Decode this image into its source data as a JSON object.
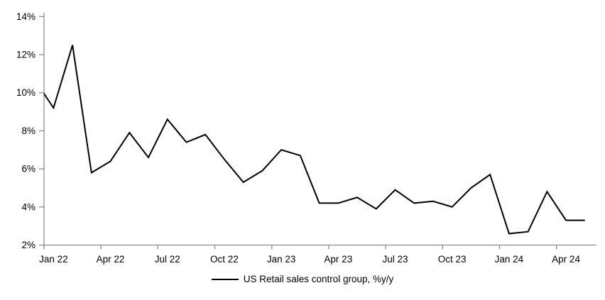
{
  "chart_data": {
    "type": "line",
    "title": "",
    "legend": "US Retail sales control group, %y/y",
    "legend_position": "bottom-center",
    "grid": false,
    "ylim": [
      2,
      14
    ],
    "y_tick_labels": [
      "2%",
      "4%",
      "6%",
      "8%",
      "10%",
      "12%",
      "14%"
    ],
    "x_tick_labels": [
      "Jan 22",
      "Apr 22",
      "Jul 22",
      "Oct 22",
      "Jan 23",
      "Apr 23",
      "Jul 23",
      "Oct 23",
      "Jan 24",
      "Apr 24"
    ],
    "x": [
      "Dec 21",
      "Jan 22",
      "Feb 22",
      "Mar 22",
      "Apr 22",
      "May 22",
      "Jun 22",
      "Jul 22",
      "Aug 22",
      "Sep 22",
      "Oct 22",
      "Nov 22",
      "Dec 22",
      "Jan 23",
      "Feb 23",
      "Mar 23",
      "Apr 23",
      "May 23",
      "Jun 23",
      "Jul 23",
      "Aug 23",
      "Sep 23",
      "Oct 23",
      "Nov 23",
      "Dec 23",
      "Jan 24",
      "Feb 24",
      "Mar 24",
      "Apr 24",
      "May 24"
    ],
    "values": [
      10.7,
      9.2,
      12.5,
      5.8,
      6.4,
      7.9,
      6.6,
      8.6,
      7.4,
      7.8,
      6.5,
      5.3,
      5.9,
      7.0,
      6.7,
      4.2,
      4.2,
      4.5,
      3.9,
      4.9,
      4.2,
      4.3,
      4.0,
      5.0,
      5.7,
      2.6,
      2.7,
      4.8,
      3.3,
      3.3
    ],
    "first_point_clipped_at_left_axis": true,
    "colors": {
      "line": "#000000",
      "axis": "#8c8c8c",
      "text": "#000000",
      "background": "#ffffff"
    }
  }
}
